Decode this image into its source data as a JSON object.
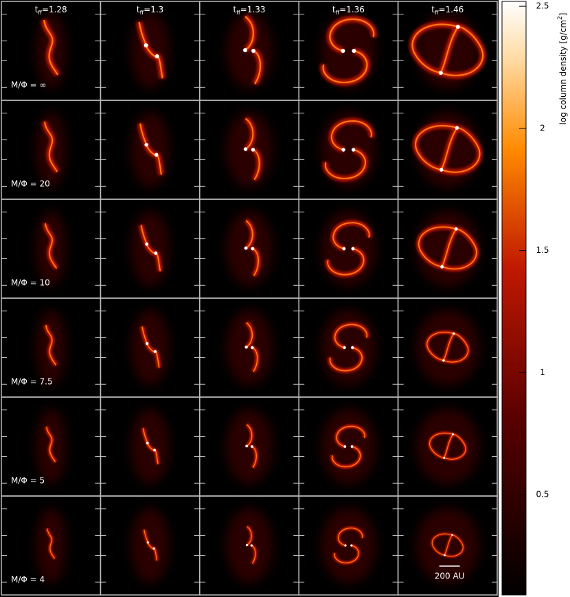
{
  "time_symbol": {
    "base": "t",
    "sub": "ff"
  },
  "columns": [
    "=1.28",
    "=1.3",
    "=1.33",
    "=1.36",
    "=1.46"
  ],
  "rows": [
    "M/Φ = ∞",
    "M/Φ = 20",
    "M/Φ = 10",
    "M/Φ = 7.5",
    "M/Φ = 5",
    "M/Φ = 4"
  ],
  "scale_bar": "200 AU",
  "colorbar": {
    "label": {
      "text": "log column density [g/cm",
      "sup": "2",
      "end": "]"
    },
    "lim": [
      0.09,
      2.52
    ],
    "ticks": [
      0.5,
      1,
      1.5,
      2,
      2.5
    ]
  }
}
